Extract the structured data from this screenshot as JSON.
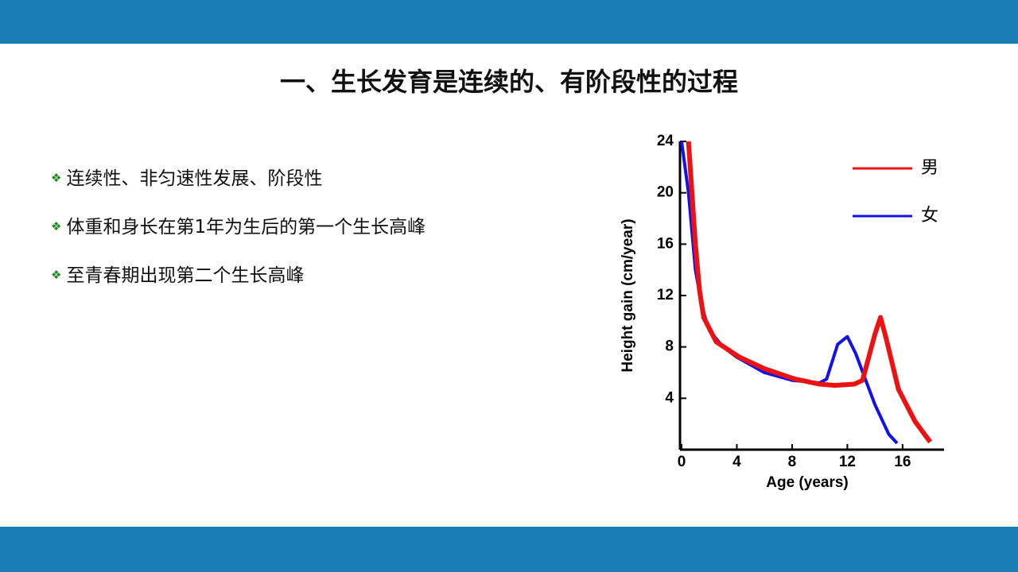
{
  "slide": {
    "title": "一、生长发育是连续的、有阶段性的过程",
    "bullets": [
      "连续性、非匀速性发展、阶段性",
      "体重和身长在第1年为生后的第一个生长高峰",
      "至青春期出现第二个生长高峰"
    ]
  },
  "chart_data": {
    "type": "line",
    "xlabel": "Age (years)",
    "ylabel": "Height gain (cm/year)",
    "xlim": [
      0,
      19
    ],
    "ylim": [
      0,
      24
    ],
    "xticks": [
      0,
      4,
      8,
      12,
      16
    ],
    "yticks": [
      4,
      8,
      12,
      16,
      20,
      24
    ],
    "legend": "upper right",
    "series": [
      {
        "name": "男",
        "color": "#ee1111",
        "x": [
          0.5,
          1,
          1.3,
          1.6,
          2.5,
          4.2,
          6,
          8.2,
          10,
          11.1,
          12.5,
          13.1,
          14,
          14.4,
          14.8,
          15.7,
          16.9,
          18
        ],
        "values": [
          24,
          16,
          12.4,
          10.3,
          8.4,
          7.2,
          6.3,
          5.5,
          5.1,
          5.0,
          5.1,
          5.4,
          9,
          10.3,
          8.7,
          4.7,
          2.2,
          0.6
        ]
      },
      {
        "name": "女",
        "color": "#1111ee",
        "x": [
          0,
          0.5,
          1,
          1.5,
          2,
          3,
          4,
          6,
          8,
          10,
          10.5,
          11.3,
          12,
          12.6,
          14,
          15,
          15.6
        ],
        "values": [
          24,
          20,
          14,
          11,
          9.3,
          8,
          7.2,
          6,
          5.4,
          5.2,
          5.5,
          8.2,
          8.8,
          7.5,
          3.5,
          1.2,
          0.5
        ]
      }
    ]
  }
}
